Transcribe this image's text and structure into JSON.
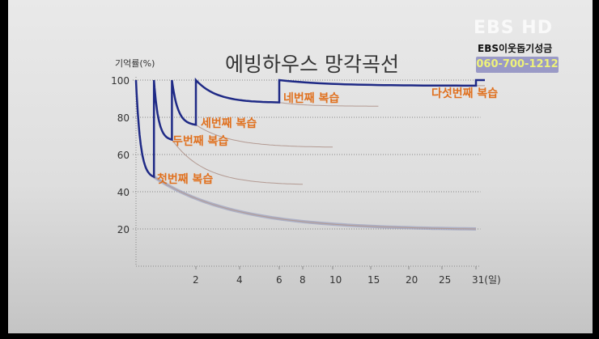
{
  "overlay": {
    "watermark": "EBS HD",
    "donation_label": "EBS이웃돕기성금",
    "phone": "060-700-1212"
  },
  "chart_data": {
    "type": "line",
    "title": "에빙하우스 망각곡선",
    "ylabel": "기억률(%)",
    "xlabel": "",
    "ylim": [
      0,
      100
    ],
    "y_ticks": [
      "100",
      "80",
      "60",
      "40",
      "20"
    ],
    "y_tick_values": [
      100,
      80,
      60,
      40,
      20
    ],
    "x_ticks": [
      "2",
      "4",
      "6",
      "8",
      "10",
      "15",
      "20",
      "25",
      "31(일)"
    ],
    "x_tick_values": [
      2,
      4,
      6,
      8,
      10,
      15,
      20,
      25,
      31
    ],
    "x_scale": "non-linear (compressed)",
    "grid": "horizontal dotted",
    "colors": {
      "review_line": "#1f2a86",
      "decay_line": "#b39a92",
      "label": "#e0701e",
      "base_band": "#9aa0bf"
    },
    "reviews": [
      {
        "label": "첫번째 복습",
        "day": 0.6,
        "retention_before": 48
      },
      {
        "label": "두번째 복습",
        "day": 1.2,
        "retention_before": 68
      },
      {
        "label": "세번째 복습",
        "day": 2,
        "retention_before": 76
      },
      {
        "label": "네번째 복습",
        "day": 6,
        "retention_before": 88
      },
      {
        "label": "다섯번째 복습",
        "day": 31,
        "retention_before": 97
      }
    ],
    "forgetting_curves": [
      {
        "start_day": 0.6,
        "start": 48,
        "end_day": 31,
        "end": 20
      },
      {
        "start_day": 1.2,
        "start": 68,
        "end_day": 8,
        "end": 44
      },
      {
        "start_day": 2,
        "start": 76,
        "end_day": 10,
        "end": 64
      },
      {
        "start_day": 6,
        "start": 88,
        "end_day": 16,
        "end": 86
      },
      {
        "start_day": 31,
        "start": 97,
        "end_day": 32,
        "end": 97
      }
    ]
  }
}
